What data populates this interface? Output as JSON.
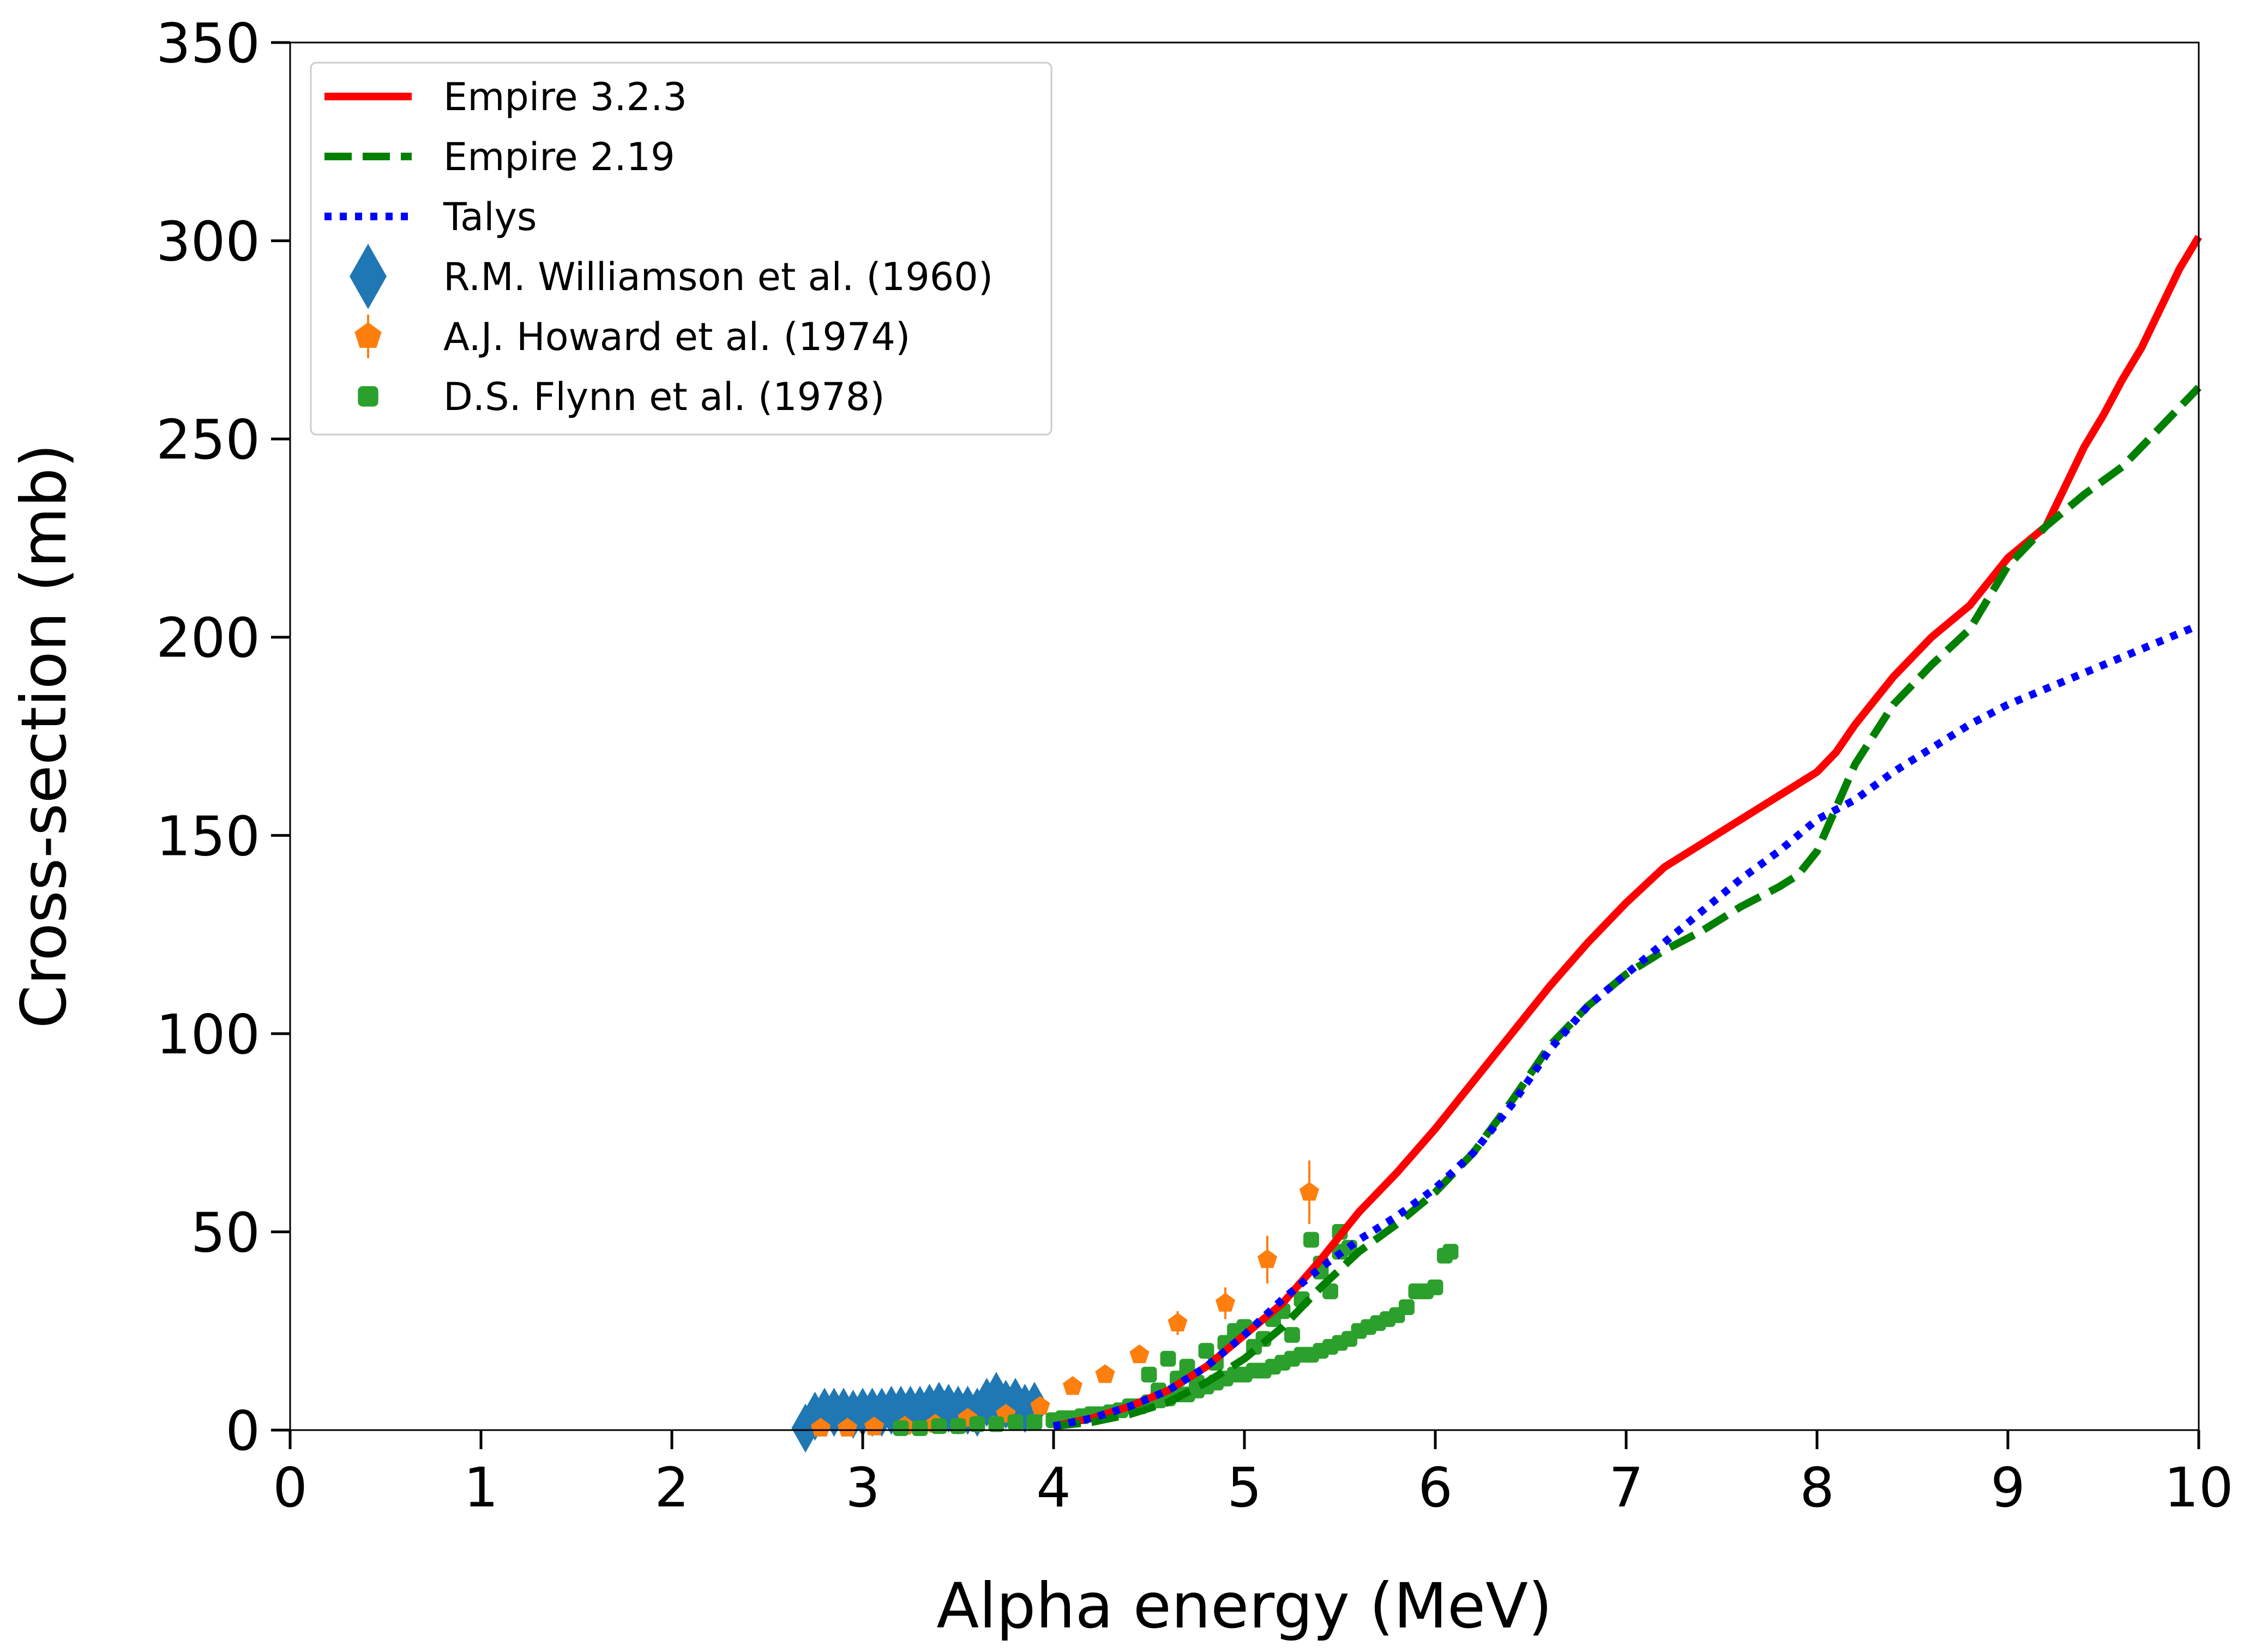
{
  "chart_data": {
    "type": "line",
    "title": "",
    "xlabel": "Alpha energy (MeV)",
    "ylabel": "Cross-section (mb)",
    "xlim": [
      0,
      10
    ],
    "ylim": [
      0,
      350
    ],
    "xticks": [
      0,
      1,
      2,
      3,
      4,
      5,
      6,
      7,
      8,
      9,
      10
    ],
    "yticks": [
      0,
      50,
      100,
      150,
      200,
      250,
      300,
      350
    ],
    "grid": false,
    "legend_position": "top-left",
    "series": [
      {
        "name": "Empire 3.2.3",
        "kind": "line",
        "style": "solid",
        "color": "#ff0000",
        "x": [
          4.0,
          4.2,
          4.4,
          4.6,
          4.8,
          5.0,
          5.2,
          5.4,
          5.6,
          5.8,
          6.0,
          6.2,
          6.4,
          6.6,
          6.8,
          7.0,
          7.2,
          7.4,
          7.6,
          7.8,
          7.9,
          8.0,
          8.1,
          8.2,
          8.4,
          8.6,
          8.8,
          9.0,
          9.2,
          9.3,
          9.4,
          9.5,
          9.6,
          9.7,
          9.8,
          9.9,
          10.0
        ],
        "y": [
          1,
          3,
          6,
          10,
          16,
          24,
          32,
          43,
          55,
          65,
          76,
          88,
          100,
          112,
          123,
          133,
          142,
          148,
          154,
          160,
          163,
          166,
          171,
          178,
          190,
          200,
          208,
          220,
          228,
          238,
          248,
          256,
          265,
          273,
          283,
          293,
          301
        ]
      },
      {
        "name": "Empire 2.19",
        "kind": "line",
        "style": "dashed",
        "color": "#008000",
        "x": [
          4.0,
          4.2,
          4.4,
          4.6,
          4.8,
          5.0,
          5.2,
          5.4,
          5.6,
          5.8,
          6.0,
          6.2,
          6.4,
          6.6,
          6.8,
          7.0,
          7.2,
          7.4,
          7.6,
          7.8,
          7.9,
          8.0,
          8.1,
          8.2,
          8.4,
          8.6,
          8.8,
          9.0,
          9.2,
          9.4,
          9.6,
          9.8,
          10.0
        ],
        "y": [
          1,
          2,
          4,
          7,
          12,
          18,
          26,
          36,
          45,
          52,
          60,
          70,
          83,
          97,
          107,
          115,
          121,
          126,
          132,
          137,
          140,
          146,
          157,
          168,
          183,
          193,
          202,
          218,
          228,
          236,
          243,
          253,
          263
        ]
      },
      {
        "name": "Talys",
        "kind": "line",
        "style": "dotted",
        "color": "#0000ff",
        "x": [
          4.0,
          4.2,
          4.4,
          4.6,
          4.8,
          5.0,
          5.2,
          5.4,
          5.6,
          5.8,
          6.0,
          6.2,
          6.4,
          6.6,
          6.8,
          7.0,
          7.2,
          7.4,
          7.6,
          7.8,
          8.0,
          8.2,
          8.4,
          8.6,
          8.8,
          9.0,
          9.2,
          9.4,
          9.6,
          9.8,
          10.0
        ],
        "y": [
          1,
          3,
          6,
          10,
          16,
          24,
          33,
          41,
          48,
          54,
          61,
          70,
          82,
          96,
          107,
          115,
          123,
          131,
          139,
          146,
          154,
          159,
          166,
          172,
          178,
          183,
          187,
          191,
          195,
          199,
          203
        ]
      },
      {
        "name": "R.M. Williamson et al. (1960)",
        "kind": "scatter",
        "marker": "diamond",
        "color": "#1f77b4",
        "x": [
          2.7,
          2.75,
          2.8,
          2.85,
          2.9,
          2.95,
          3.0,
          3.05,
          3.1,
          3.15,
          3.2,
          3.25,
          3.3,
          3.35,
          3.4,
          3.45,
          3.5,
          3.55,
          3.6,
          3.65,
          3.7,
          3.75,
          3.8,
          3.85,
          3.9
        ],
        "y": [
          0.5,
          3.5,
          4.5,
          4.5,
          4.5,
          4,
          4.5,
          4.5,
          4.5,
          5,
          5,
          5,
          5,
          5.5,
          6,
          5.5,
          5,
          5,
          4.5,
          7,
          8.5,
          6.5,
          7,
          5.5,
          6
        ]
      },
      {
        "name": "A.J. Howard et al. (1974)",
        "kind": "scatter",
        "marker": "pentagon",
        "color": "#ff7f0e",
        "x": [
          2.78,
          2.92,
          3.06,
          3.22,
          3.38,
          3.55,
          3.75,
          3.93,
          4.1,
          4.27,
          4.45,
          4.65,
          4.9,
          5.12,
          5.34
        ],
        "y": [
          0.5,
          0.5,
          0.8,
          1,
          1.5,
          3,
          4,
          6,
          11,
          14,
          19,
          27,
          32,
          43,
          60
        ],
        "yerr": [
          0.5,
          0.5,
          0.5,
          0.5,
          0.5,
          1,
          1,
          1,
          1.5,
          2,
          2,
          3,
          4,
          6,
          8
        ]
      },
      {
        "name": "D.S. Flynn et al. (1978)",
        "kind": "scatter",
        "marker": "square",
        "color": "#2ca02c",
        "x": [
          3.2,
          3.3,
          3.4,
          3.5,
          3.6,
          3.7,
          3.8,
          3.9,
          4.0,
          4.05,
          4.1,
          4.15,
          4.2,
          4.25,
          4.3,
          4.35,
          4.4,
          4.45,
          4.5,
          4.55,
          4.6,
          4.65,
          4.7,
          4.75,
          4.8,
          4.85,
          4.9,
          4.95,
          5.0,
          5.05,
          5.1,
          5.15,
          5.2,
          5.25,
          5.3,
          5.35,
          5.4,
          5.45,
          5.5,
          5.55,
          5.6,
          5.65,
          5.7,
          5.75,
          5.8,
          5.85,
          5.9,
          5.95,
          6.0,
          6.05,
          6.08,
          4.5,
          4.6,
          4.7,
          4.8,
          4.9,
          5.0,
          5.1,
          5.2,
          5.3,
          5.35,
          5.4,
          5.45,
          5.5,
          4.55,
          4.65,
          4.75,
          4.85,
          4.95,
          5.05,
          5.15,
          5.25,
          5.3,
          5.4,
          5.5,
          5.55
        ],
        "y": [
          0.5,
          0.5,
          1,
          1,
          1.5,
          1.5,
          2,
          2,
          2.5,
          3,
          3,
          3.5,
          4,
          4,
          4.5,
          5,
          6,
          6,
          7,
          7.5,
          8,
          9,
          9,
          10,
          11,
          12,
          13,
          14,
          14,
          15,
          15,
          16,
          17,
          18,
          19,
          19,
          20,
          21,
          22,
          23,
          25,
          26,
          27,
          28,
          29,
          31,
          35,
          35,
          36,
          44,
          45,
          14,
          18,
          16,
          20,
          22,
          26,
          23,
          30,
          33,
          48,
          40,
          35,
          45,
          10,
          13,
          12,
          17,
          25,
          21,
          28,
          24,
          33,
          42,
          50,
          46
        ]
      }
    ]
  }
}
